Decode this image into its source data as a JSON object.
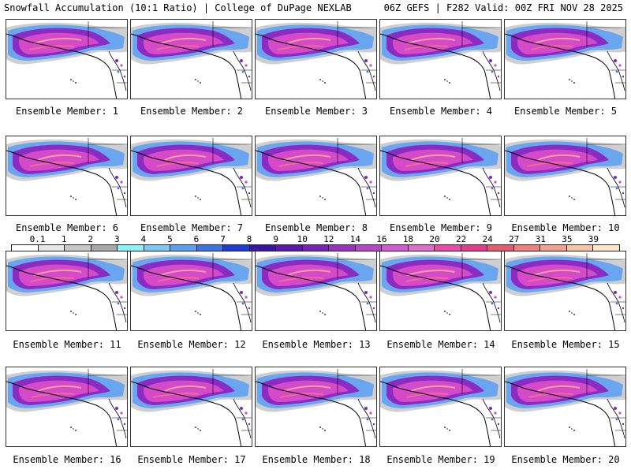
{
  "header": {
    "title_left": "Snowfall Accumulation (10:1 Ratio) | College of DuPage NEXLAB",
    "title_right": "06Z GEFS | F282 Valid: 00Z FRI NOV 28 2025"
  },
  "panels": [
    {
      "label": "Ensemble Member: 1"
    },
    {
      "label": "Ensemble Member: 2"
    },
    {
      "label": "Ensemble Member: 3"
    },
    {
      "label": "Ensemble Member: 4"
    },
    {
      "label": "Ensemble Member: 5"
    },
    {
      "label": "Ensemble Member: 6"
    },
    {
      "label": "Ensemble Member: 7"
    },
    {
      "label": "Ensemble Member: 8"
    },
    {
      "label": "Ensemble Member: 9"
    },
    {
      "label": "Ensemble Member: 10"
    },
    {
      "label": "Ensemble Member: 11"
    },
    {
      "label": "Ensemble Member: 12"
    },
    {
      "label": "Ensemble Member: 13"
    },
    {
      "label": "Ensemble Member: 14"
    },
    {
      "label": "Ensemble Member: 15"
    },
    {
      "label": "Ensemble Member: 16"
    },
    {
      "label": "Ensemble Member: 17"
    },
    {
      "label": "Ensemble Member: 18"
    },
    {
      "label": "Ensemble Member: 19"
    },
    {
      "label": "Ensemble Member: 20"
    }
  ],
  "legend": {
    "labels": [
      "0.1",
      "1",
      "2",
      "3",
      "4",
      "5",
      "6",
      "7",
      "8",
      "9",
      "10",
      "12",
      "14",
      "16",
      "18",
      "20",
      "22",
      "24",
      "27",
      "31",
      "35",
      "39"
    ],
    "colors": [
      "#ffffff",
      "#e6e6e6",
      "#c8c8c8",
      "#a8a8a8",
      "#8cf2ff",
      "#7ec8f5",
      "#5aa0ee",
      "#3c74e6",
      "#1e3cd8",
      "#3a14a8",
      "#5a18b0",
      "#7822b8",
      "#9a32c0",
      "#b846c8",
      "#d25ad2",
      "#e06ec8",
      "#e84aa8",
      "#e83a8c",
      "#e85a70",
      "#f07e7e",
      "#f4a090",
      "#f8c4a8",
      "#fce4c8"
    ]
  }
}
